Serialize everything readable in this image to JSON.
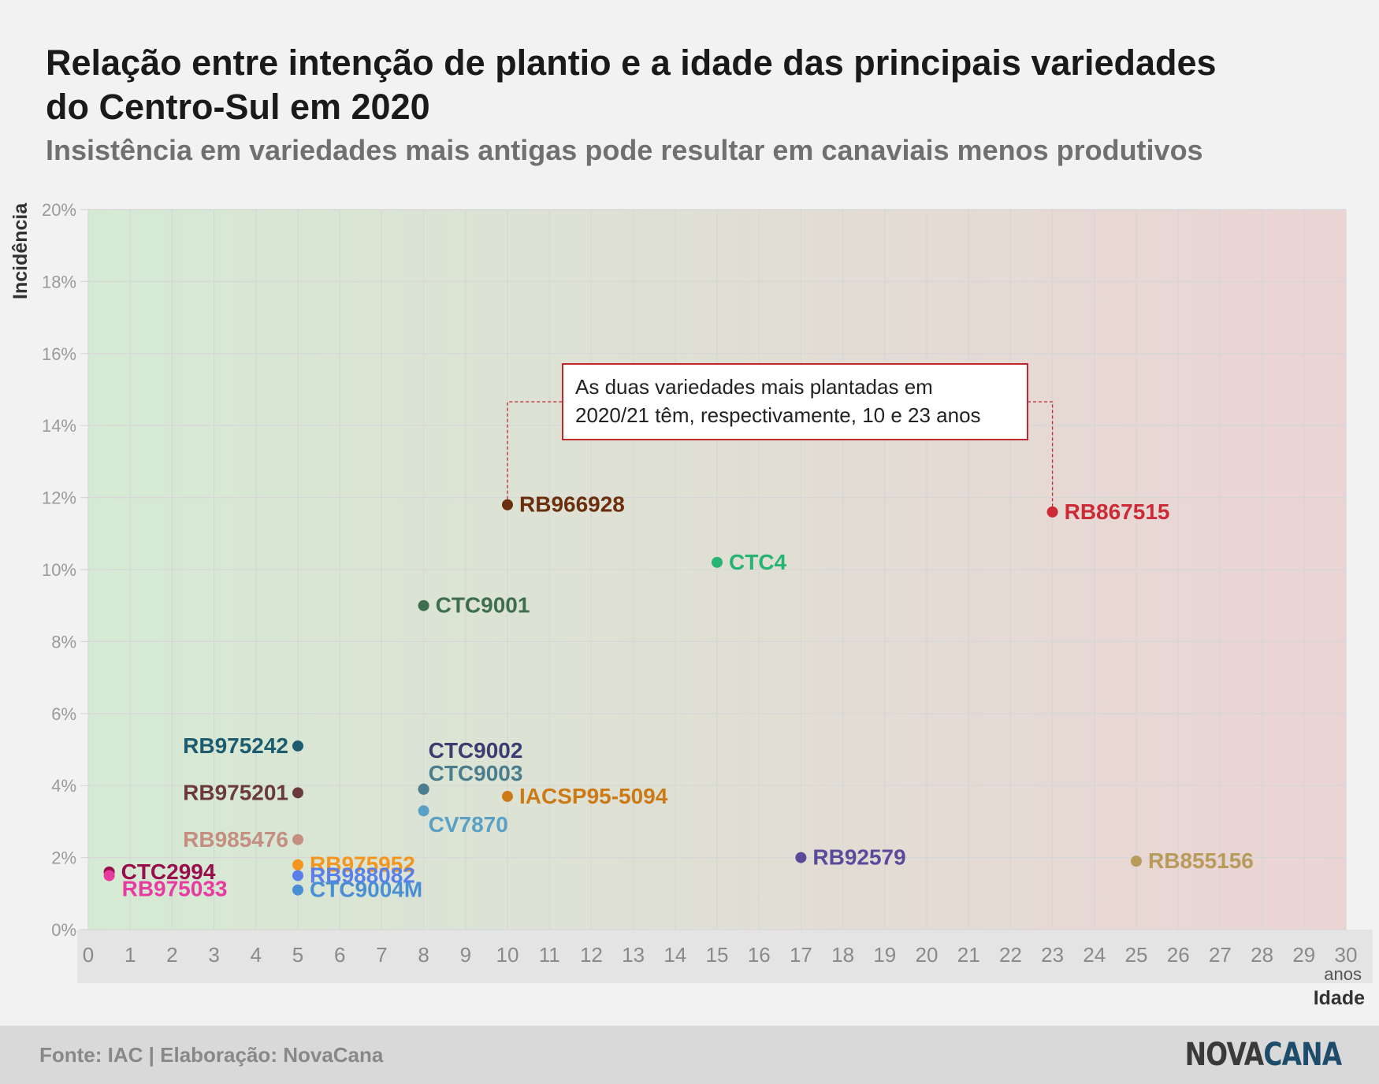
{
  "header": {
    "title": "Relação entre intenção de plantio e a idade das principais variedades do Centro-Sul em 2020",
    "subtitle": "Insistência em variedades mais antigas pode resultar em canaviais menos produtivos"
  },
  "footer": {
    "source": "Fonte: IAC | Elaboração: NovaCana",
    "logo_part1": "NOVA",
    "logo_part2": "CANA"
  },
  "chart_data": {
    "type": "scatter",
    "xlabel": "Idade",
    "xunit": "anos",
    "ylabel": "Incidência",
    "xlim": [
      0,
      30
    ],
    "ylim": [
      0,
      20
    ],
    "x_ticks": [
      "0",
      "1",
      "2",
      "3",
      "4",
      "5",
      "6",
      "7",
      "8",
      "9",
      "10",
      "11",
      "12",
      "13",
      "14",
      "15",
      "16",
      "17",
      "18",
      "19",
      "20",
      "21",
      "22",
      "23",
      "24",
      "25",
      "26",
      "27",
      "28",
      "29",
      "30"
    ],
    "y_ticks": [
      "0%",
      "2%",
      "4%",
      "6%",
      "8%",
      "10%",
      "12%",
      "14%",
      "16%",
      "18%",
      "20%"
    ],
    "grid": true,
    "background_gradient": [
      "#d5ead4",
      "#ebd4d4"
    ],
    "annotation": {
      "text_line1": "As duas variedades mais plantadas em",
      "text_line2": "2020/21 têm, respectivamente, 10 e 23 anos",
      "targets": [
        "RB966928",
        "RB867515"
      ],
      "color": "#c0282d"
    },
    "points": [
      {
        "name": "RB966928",
        "x": 10,
        "y": 11.8,
        "color": "#6b2e0e",
        "label_pos": "right"
      },
      {
        "name": "RB867515",
        "x": 23,
        "y": 11.6,
        "color": "#cc2a36",
        "label_pos": "right"
      },
      {
        "name": "CTC4",
        "x": 15,
        "y": 10.2,
        "color": "#27b472",
        "label_pos": "right"
      },
      {
        "name": "CTC9001",
        "x": 8,
        "y": 9.0,
        "color": "#3d6e4e",
        "label_pos": "right"
      },
      {
        "name": "RB975242",
        "x": 5,
        "y": 5.1,
        "color": "#1d5c6e",
        "label_pos": "left"
      },
      {
        "name": "CTC9002",
        "x": 8,
        "y": 3.9,
        "color": "#3a3d70",
        "label_pos": "above-right"
      },
      {
        "name": "CTC9003",
        "x": 8,
        "y": 3.9,
        "color": "#4a7e8e",
        "label_pos": "above-right-low"
      },
      {
        "name": "RB975201",
        "x": 5,
        "y": 3.8,
        "color": "#6b3a3a",
        "label_pos": "left"
      },
      {
        "name": "IACSP95-5094",
        "x": 10,
        "y": 3.7,
        "color": "#cc7a16",
        "label_pos": "right"
      },
      {
        "name": "CV7870",
        "x": 8,
        "y": 3.3,
        "color": "#5aa0c4",
        "label_pos": "below-right"
      },
      {
        "name": "RB985476",
        "x": 5,
        "y": 2.5,
        "color": "#c48e80",
        "label_pos": "left"
      },
      {
        "name": "RB92579",
        "x": 17,
        "y": 2.0,
        "color": "#5a4a9a",
        "label_pos": "right"
      },
      {
        "name": "RB855156",
        "x": 25,
        "y": 1.9,
        "color": "#b89a5a",
        "label_pos": "right"
      },
      {
        "name": "RB975952",
        "x": 5,
        "y": 1.8,
        "color": "#f4961e",
        "label_pos": "right"
      },
      {
        "name": "CTC2994",
        "x": 0.5,
        "y": 1.6,
        "color": "#9a0e4e",
        "label_pos": "right"
      },
      {
        "name": "RB988082",
        "x": 5,
        "y": 1.5,
        "color": "#5a7eea",
        "label_pos": "right"
      },
      {
        "name": "RB975033",
        "x": 0.5,
        "y": 1.5,
        "color": "#e83aa0",
        "label_pos": "right-below"
      },
      {
        "name": "CTC9004M",
        "x": 5,
        "y": 1.1,
        "color": "#4a8ed4",
        "label_pos": "right"
      }
    ]
  }
}
